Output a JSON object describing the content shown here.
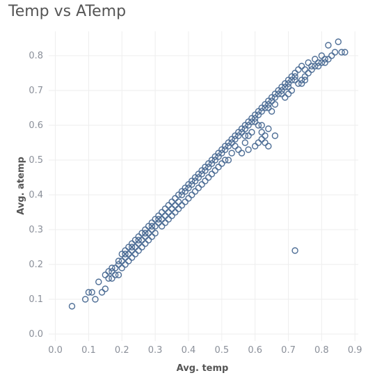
{
  "chart_data": {
    "type": "scatter",
    "title": "Temp vs ATemp",
    "xlabel": "Avg. temp",
    "ylabel": "Avg. atemp",
    "xlim": [
      -0.02,
      0.91
    ],
    "ylim": [
      -0.02,
      0.87
    ],
    "x_ticks": [
      "0.0",
      "0.1",
      "0.2",
      "0.3",
      "0.4",
      "0.5",
      "0.6",
      "0.7",
      "0.8",
      "0.9"
    ],
    "y_ticks": [
      "0.0",
      "0.1",
      "0.2",
      "0.3",
      "0.4",
      "0.5",
      "0.6",
      "0.7",
      "0.8"
    ],
    "grid": true,
    "marker": "circle-open",
    "color": "#4e6e96",
    "series": [
      {
        "points": [
          [
            0.05,
            0.08
          ],
          [
            0.09,
            0.1
          ],
          [
            0.1,
            0.12
          ],
          [
            0.11,
            0.12
          ],
          [
            0.12,
            0.1
          ],
          [
            0.13,
            0.15
          ],
          [
            0.14,
            0.12
          ],
          [
            0.15,
            0.13
          ],
          [
            0.16,
            0.16
          ],
          [
            0.17,
            0.18
          ],
          [
            0.17,
            0.16
          ],
          [
            0.18,
            0.19
          ],
          [
            0.19,
            0.2
          ],
          [
            0.19,
            0.17
          ],
          [
            0.2,
            0.23
          ],
          [
            0.2,
            0.21
          ],
          [
            0.21,
            0.22
          ],
          [
            0.21,
            0.24
          ],
          [
            0.22,
            0.25
          ],
          [
            0.22,
            0.23
          ],
          [
            0.23,
            0.26
          ],
          [
            0.23,
            0.24
          ],
          [
            0.24,
            0.25
          ],
          [
            0.24,
            0.27
          ],
          [
            0.25,
            0.28
          ],
          [
            0.25,
            0.26
          ],
          [
            0.26,
            0.29
          ],
          [
            0.26,
            0.27
          ],
          [
            0.27,
            0.3
          ],
          [
            0.27,
            0.28
          ],
          [
            0.28,
            0.31
          ],
          [
            0.28,
            0.29
          ],
          [
            0.29,
            0.32
          ],
          [
            0.29,
            0.3
          ],
          [
            0.3,
            0.33
          ],
          [
            0.3,
            0.31
          ],
          [
            0.31,
            0.34
          ],
          [
            0.31,
            0.32
          ],
          [
            0.32,
            0.35
          ],
          [
            0.32,
            0.33
          ],
          [
            0.33,
            0.36
          ],
          [
            0.33,
            0.34
          ],
          [
            0.34,
            0.37
          ],
          [
            0.34,
            0.35
          ],
          [
            0.35,
            0.38
          ],
          [
            0.35,
            0.36
          ],
          [
            0.36,
            0.39
          ],
          [
            0.36,
            0.37
          ],
          [
            0.37,
            0.4
          ],
          [
            0.37,
            0.38
          ],
          [
            0.38,
            0.41
          ],
          [
            0.38,
            0.4
          ],
          [
            0.39,
            0.42
          ],
          [
            0.39,
            0.41
          ],
          [
            0.4,
            0.43
          ],
          [
            0.4,
            0.42
          ],
          [
            0.41,
            0.44
          ],
          [
            0.41,
            0.43
          ],
          [
            0.42,
            0.45
          ],
          [
            0.42,
            0.44
          ],
          [
            0.43,
            0.46
          ],
          [
            0.43,
            0.45
          ],
          [
            0.44,
            0.47
          ],
          [
            0.44,
            0.46
          ],
          [
            0.45,
            0.48
          ],
          [
            0.45,
            0.47
          ],
          [
            0.46,
            0.49
          ],
          [
            0.46,
            0.48
          ],
          [
            0.47,
            0.5
          ],
          [
            0.47,
            0.49
          ],
          [
            0.48,
            0.51
          ],
          [
            0.48,
            0.5
          ],
          [
            0.49,
            0.52
          ],
          [
            0.49,
            0.51
          ],
          [
            0.5,
            0.53
          ],
          [
            0.5,
            0.52
          ],
          [
            0.51,
            0.54
          ],
          [
            0.51,
            0.53
          ],
          [
            0.52,
            0.55
          ],
          [
            0.52,
            0.54
          ],
          [
            0.53,
            0.56
          ],
          [
            0.53,
            0.55
          ],
          [
            0.54,
            0.57
          ],
          [
            0.54,
            0.56
          ],
          [
            0.55,
            0.58
          ],
          [
            0.55,
            0.57
          ],
          [
            0.56,
            0.59
          ],
          [
            0.56,
            0.58
          ],
          [
            0.57,
            0.6
          ],
          [
            0.57,
            0.59
          ],
          [
            0.58,
            0.61
          ],
          [
            0.58,
            0.6
          ],
          [
            0.59,
            0.62
          ],
          [
            0.59,
            0.61
          ],
          [
            0.6,
            0.63
          ],
          [
            0.6,
            0.62
          ],
          [
            0.61,
            0.64
          ],
          [
            0.61,
            0.63
          ],
          [
            0.62,
            0.65
          ],
          [
            0.62,
            0.64
          ],
          [
            0.63,
            0.66
          ],
          [
            0.63,
            0.65
          ],
          [
            0.64,
            0.67
          ],
          [
            0.64,
            0.66
          ],
          [
            0.65,
            0.68
          ],
          [
            0.65,
            0.67
          ],
          [
            0.66,
            0.69
          ],
          [
            0.66,
            0.68
          ],
          [
            0.67,
            0.7
          ],
          [
            0.67,
            0.69
          ],
          [
            0.68,
            0.71
          ],
          [
            0.68,
            0.7
          ],
          [
            0.69,
            0.72
          ],
          [
            0.69,
            0.71
          ],
          [
            0.7,
            0.73
          ],
          [
            0.7,
            0.72
          ],
          [
            0.71,
            0.74
          ],
          [
            0.71,
            0.73
          ],
          [
            0.72,
            0.75
          ],
          [
            0.72,
            0.74
          ],
          [
            0.73,
            0.76
          ],
          [
            0.74,
            0.77
          ],
          [
            0.75,
            0.76
          ],
          [
            0.76,
            0.78
          ],
          [
            0.77,
            0.77
          ],
          [
            0.78,
            0.79
          ],
          [
            0.79,
            0.78
          ],
          [
            0.8,
            0.8
          ],
          [
            0.81,
            0.79
          ],
          [
            0.82,
            0.79
          ],
          [
            0.83,
            0.8
          ],
          [
            0.82,
            0.83
          ],
          [
            0.84,
            0.81
          ],
          [
            0.85,
            0.84
          ],
          [
            0.86,
            0.81
          ],
          [
            0.87,
            0.81
          ],
          [
            0.6,
            0.61
          ],
          [
            0.62,
            0.6
          ],
          [
            0.65,
            0.64
          ],
          [
            0.58,
            0.57
          ],
          [
            0.55,
            0.53
          ],
          [
            0.53,
            0.52
          ],
          [
            0.5,
            0.49
          ],
          [
            0.47,
            0.46
          ],
          [
            0.44,
            0.43
          ],
          [
            0.41,
            0.4
          ],
          [
            0.39,
            0.38
          ],
          [
            0.36,
            0.35
          ],
          [
            0.33,
            0.32
          ],
          [
            0.3,
            0.29
          ],
          [
            0.28,
            0.27
          ],
          [
            0.26,
            0.25
          ],
          [
            0.24,
            0.23
          ],
          [
            0.22,
            0.21
          ],
          [
            0.2,
            0.19
          ],
          [
            0.18,
            0.17
          ],
          [
            0.63,
            0.55
          ],
          [
            0.64,
            0.54
          ],
          [
            0.66,
            0.57
          ],
          [
            0.62,
            0.56
          ],
          [
            0.61,
            0.55
          ],
          [
            0.63,
            0.57
          ],
          [
            0.62,
            0.58
          ],
          [
            0.64,
            0.59
          ],
          [
            0.56,
            0.52
          ],
          [
            0.58,
            0.53
          ],
          [
            0.6,
            0.54
          ],
          [
            0.57,
            0.55
          ],
          [
            0.52,
            0.5
          ],
          [
            0.48,
            0.47
          ],
          [
            0.45,
            0.44
          ],
          [
            0.42,
            0.41
          ],
          [
            0.4,
            0.39
          ],
          [
            0.38,
            0.37
          ],
          [
            0.35,
            0.34
          ],
          [
            0.32,
            0.31
          ],
          [
            0.29,
            0.28
          ],
          [
            0.27,
            0.26
          ],
          [
            0.25,
            0.24
          ],
          [
            0.23,
            0.22
          ],
          [
            0.21,
            0.2
          ],
          [
            0.72,
            0.24
          ],
          [
            0.7,
            0.69
          ],
          [
            0.71,
            0.7
          ],
          [
            0.69,
            0.68
          ],
          [
            0.73,
            0.72
          ],
          [
            0.74,
            0.73
          ],
          [
            0.75,
            0.74
          ],
          [
            0.76,
            0.75
          ],
          [
            0.77,
            0.76
          ],
          [
            0.78,
            0.77
          ],
          [
            0.79,
            0.77
          ],
          [
            0.8,
            0.78
          ],
          [
            0.81,
            0.78
          ],
          [
            0.75,
            0.73
          ],
          [
            0.74,
            0.72
          ],
          [
            0.72,
            0.73
          ],
          [
            0.7,
            0.71
          ],
          [
            0.68,
            0.69
          ],
          [
            0.66,
            0.66
          ],
          [
            0.64,
            0.65
          ],
          [
            0.31,
            0.33
          ],
          [
            0.29,
            0.31
          ],
          [
            0.27,
            0.29
          ],
          [
            0.25,
            0.27
          ],
          [
            0.23,
            0.25
          ],
          [
            0.21,
            0.23
          ],
          [
            0.19,
            0.21
          ],
          [
            0.17,
            0.19
          ],
          [
            0.16,
            0.18
          ],
          [
            0.15,
            0.17
          ],
          [
            0.34,
            0.33
          ],
          [
            0.37,
            0.36
          ],
          [
            0.43,
            0.42
          ],
          [
            0.46,
            0.45
          ],
          [
            0.49,
            0.48
          ],
          [
            0.51,
            0.5
          ],
          [
            0.54,
            0.54
          ],
          [
            0.57,
            0.57
          ],
          [
            0.59,
            0.58
          ],
          [
            0.61,
            0.6
          ]
        ]
      }
    ]
  }
}
